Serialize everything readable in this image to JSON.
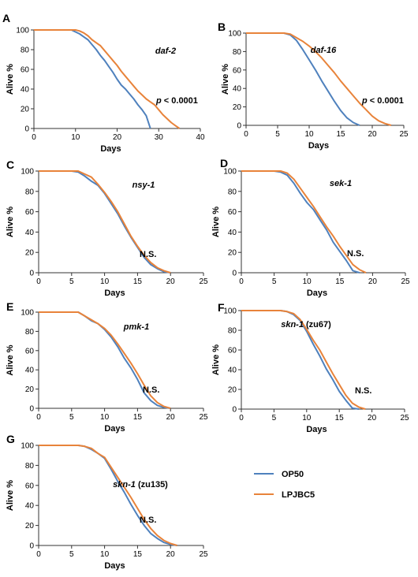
{
  "colors": {
    "op50": "#4f81bd",
    "lpjbc5": "#e8833a"
  },
  "legend": [
    {
      "name": "OP50",
      "color": "#4f81bd"
    },
    {
      "name": "LPJBC5",
      "color": "#e8833a"
    }
  ],
  "chart_data": [
    {
      "type": "line",
      "letter": "A",
      "gene": "daf-2",
      "allele": "",
      "stat_prefix": "p",
      "stat_rest": " < 0.0001",
      "xlabel": "Days",
      "ylabel": "Alive %",
      "xlim": [
        0,
        40
      ],
      "ylim": [
        0,
        100
      ],
      "xticks": [
        "0",
        "10",
        "20",
        "30",
        "40"
      ],
      "yticks": [
        "0",
        "20",
        "40",
        "60",
        "80",
        "100"
      ],
      "series": [
        {
          "name": "OP50",
          "x": [
            0,
            9,
            10,
            11,
            12,
            13,
            14,
            15,
            16,
            17,
            18,
            19,
            20,
            21,
            22,
            23,
            24,
            25,
            26,
            27,
            28
          ],
          "y": [
            100,
            100,
            98,
            96,
            93,
            90,
            85,
            80,
            74,
            69,
            63,
            57,
            50,
            44,
            40,
            35,
            30,
            24,
            19,
            13,
            0
          ]
        },
        {
          "name": "LPJBC5",
          "x": [
            0,
            10,
            11,
            12,
            13,
            14,
            15,
            16,
            17,
            18,
            19,
            20,
            21,
            22,
            23,
            24,
            25,
            26,
            27,
            28,
            29,
            30,
            31,
            32,
            33,
            34,
            35
          ],
          "y": [
            100,
            100,
            99,
            97,
            94,
            90,
            87,
            84,
            79,
            74,
            69,
            64,
            58,
            53,
            48,
            43,
            38,
            34,
            30,
            27,
            24,
            19,
            14,
            10,
            6,
            3,
            0
          ]
        }
      ]
    },
    {
      "type": "line",
      "letter": "B",
      "gene": "daf-16",
      "allele": "",
      "stat_prefix": "p",
      "stat_rest": " < 0.0001",
      "xlabel": "Days",
      "ylabel": "Alive %",
      "xlim": [
        0,
        25
      ],
      "ylim": [
        0,
        100
      ],
      "xticks": [
        "0",
        "5",
        "10",
        "15",
        "20",
        "25"
      ],
      "yticks": [
        "0",
        "20",
        "40",
        "60",
        "80",
        "100"
      ],
      "series": [
        {
          "name": "OP50",
          "x": [
            0,
            6,
            7,
            8,
            9,
            10,
            11,
            12,
            13,
            14,
            15,
            16,
            17,
            18
          ],
          "y": [
            100,
            100,
            98,
            92,
            82,
            71,
            60,
            48,
            37,
            26,
            16,
            8,
            3,
            0
          ]
        },
        {
          "name": "LPJBC5",
          "x": [
            0,
            6,
            7,
            8,
            9,
            10,
            11,
            12,
            13,
            14,
            15,
            16,
            17,
            18,
            19,
            20,
            21,
            22,
            23
          ],
          "y": [
            100,
            100,
            99,
            95,
            91,
            86,
            80,
            73,
            65,
            57,
            48,
            40,
            32,
            24,
            17,
            10,
            5,
            2,
            0
          ]
        }
      ]
    },
    {
      "type": "line",
      "letter": "C",
      "gene": "nsy-1",
      "allele": "",
      "stat_prefix": "",
      "stat_rest": "N.S.",
      "xlabel": "Days",
      "ylabel": "Alive %",
      "xlim": [
        0,
        25
      ],
      "ylim": [
        0,
        100
      ],
      "xticks": [
        "0",
        "5",
        "10",
        "15",
        "20",
        "25"
      ],
      "yticks": [
        "0",
        "20",
        "40",
        "60",
        "80",
        "100"
      ],
      "series": [
        {
          "name": "OP50",
          "x": [
            0,
            5,
            6,
            7,
            8,
            9,
            10,
            11,
            12,
            13,
            14,
            15,
            16,
            17,
            18,
            19,
            20
          ],
          "y": [
            100,
            100,
            99,
            95,
            90,
            86,
            78,
            68,
            58,
            46,
            35,
            25,
            15,
            8,
            4,
            1,
            0
          ]
        },
        {
          "name": "LPJBC5",
          "x": [
            0,
            5,
            6,
            7,
            8,
            9,
            10,
            11,
            12,
            13,
            14,
            15,
            16,
            17,
            18,
            19,
            20
          ],
          "y": [
            100,
            100,
            100,
            97,
            94,
            87,
            79,
            70,
            60,
            48,
            36,
            26,
            17,
            10,
            5,
            2,
            0
          ]
        }
      ]
    },
    {
      "type": "line",
      "letter": "D",
      "gene": "sek-1",
      "allele": "",
      "stat_prefix": "",
      "stat_rest": "N.S.",
      "xlabel": "Days",
      "ylabel": "Alive %",
      "xlim": [
        0,
        25
      ],
      "ylim": [
        0,
        100
      ],
      "xticks": [
        "0",
        "5",
        "10",
        "15",
        "20",
        "25"
      ],
      "yticks": [
        "0",
        "20",
        "40",
        "60",
        "80",
        "100"
      ],
      "series": [
        {
          "name": "OP50",
          "x": [
            0,
            5,
            6,
            7,
            8,
            9,
            10,
            11,
            12,
            13,
            14,
            15,
            16,
            17,
            18
          ],
          "y": [
            100,
            100,
            99,
            96,
            88,
            78,
            69,
            62,
            52,
            42,
            30,
            21,
            12,
            2,
            0
          ]
        },
        {
          "name": "LPJBC5",
          "x": [
            0,
            5,
            6,
            7,
            8,
            9,
            10,
            11,
            12,
            13,
            14,
            15,
            16,
            17,
            18,
            19
          ],
          "y": [
            100,
            100,
            100,
            98,
            92,
            83,
            74,
            65,
            55,
            45,
            36,
            26,
            17,
            8,
            3,
            0
          ]
        }
      ]
    },
    {
      "type": "line",
      "letter": "E",
      "gene": "pmk-1",
      "allele": "",
      "stat_prefix": "",
      "stat_rest": "N.S.",
      "xlabel": "Days",
      "ylabel": "Alive %",
      "xlim": [
        0,
        25
      ],
      "ylim": [
        0,
        100
      ],
      "xticks": [
        "0",
        "5",
        "10",
        "15",
        "20",
        "25"
      ],
      "yticks": [
        "0",
        "20",
        "40",
        "60",
        "80",
        "100"
      ],
      "series": [
        {
          "name": "OP50",
          "x": [
            0,
            6,
            7,
            8,
            9,
            10,
            11,
            12,
            13,
            14,
            15,
            16,
            17,
            18,
            19,
            20
          ],
          "y": [
            100,
            100,
            96,
            91,
            88,
            82,
            74,
            64,
            52,
            42,
            30,
            16,
            8,
            3,
            1,
            0
          ]
        },
        {
          "name": "LPJBC5",
          "x": [
            0,
            6,
            7,
            8,
            9,
            10,
            11,
            12,
            13,
            14,
            15,
            16,
            17,
            18,
            19,
            20
          ],
          "y": [
            100,
            100,
            96,
            92,
            88,
            83,
            76,
            67,
            57,
            47,
            36,
            24,
            13,
            6,
            2,
            0
          ]
        }
      ]
    },
    {
      "type": "line",
      "letter": "F",
      "gene": "skn-1",
      "allele": " (zu67)",
      "stat_prefix": "",
      "stat_rest": "N.S.",
      "xlabel": "Days",
      "ylabel": "Alive %",
      "xlim": [
        0,
        25
      ],
      "ylim": [
        0,
        100
      ],
      "xticks": [
        "0",
        "5",
        "10",
        "15",
        "20",
        "25"
      ],
      "yticks": [
        "0",
        "20",
        "40",
        "60",
        "80",
        "100"
      ],
      "series": [
        {
          "name": "OP50",
          "x": [
            0,
            6,
            7,
            8,
            9,
            10,
            11,
            12,
            13,
            14,
            15,
            16,
            17,
            18
          ],
          "y": [
            100,
            100,
            99,
            96,
            90,
            79,
            66,
            54,
            41,
            30,
            18,
            9,
            1,
            0
          ]
        },
        {
          "name": "LPJBC5",
          "x": [
            0,
            6,
            7,
            8,
            9,
            10,
            11,
            12,
            13,
            14,
            15,
            16,
            17,
            18,
            19
          ],
          "y": [
            100,
            100,
            99,
            97,
            91,
            81,
            70,
            60,
            48,
            36,
            25,
            14,
            6,
            2,
            0
          ]
        }
      ]
    },
    {
      "type": "line",
      "letter": "G",
      "gene": "skn-1",
      "allele": " (zu135)",
      "stat_prefix": "",
      "stat_rest": "N.S.",
      "xlabel": "Days",
      "ylabel": "Alive %",
      "xlim": [
        0,
        25
      ],
      "ylim": [
        0,
        100
      ],
      "xticks": [
        "0",
        "5",
        "10",
        "15",
        "20",
        "25"
      ],
      "yticks": [
        "0",
        "20",
        "40",
        "60",
        "80",
        "100"
      ],
      "series": [
        {
          "name": "OP50",
          "x": [
            0,
            6,
            7,
            8,
            9,
            10,
            11,
            12,
            13,
            14,
            15,
            16,
            17,
            18,
            19,
            20,
            21
          ],
          "y": [
            100,
            100,
            99,
            96,
            92,
            87,
            76,
            64,
            53,
            41,
            30,
            20,
            12,
            7,
            3,
            1,
            0
          ]
        },
        {
          "name": "LPJBC5",
          "x": [
            0,
            6,
            7,
            8,
            9,
            10,
            11,
            12,
            13,
            14,
            15,
            16,
            17,
            18,
            19,
            20,
            21
          ],
          "y": [
            100,
            100,
            99,
            97,
            92,
            88,
            78,
            68,
            58,
            48,
            37,
            26,
            17,
            10,
            5,
            2,
            0
          ]
        }
      ]
    }
  ]
}
